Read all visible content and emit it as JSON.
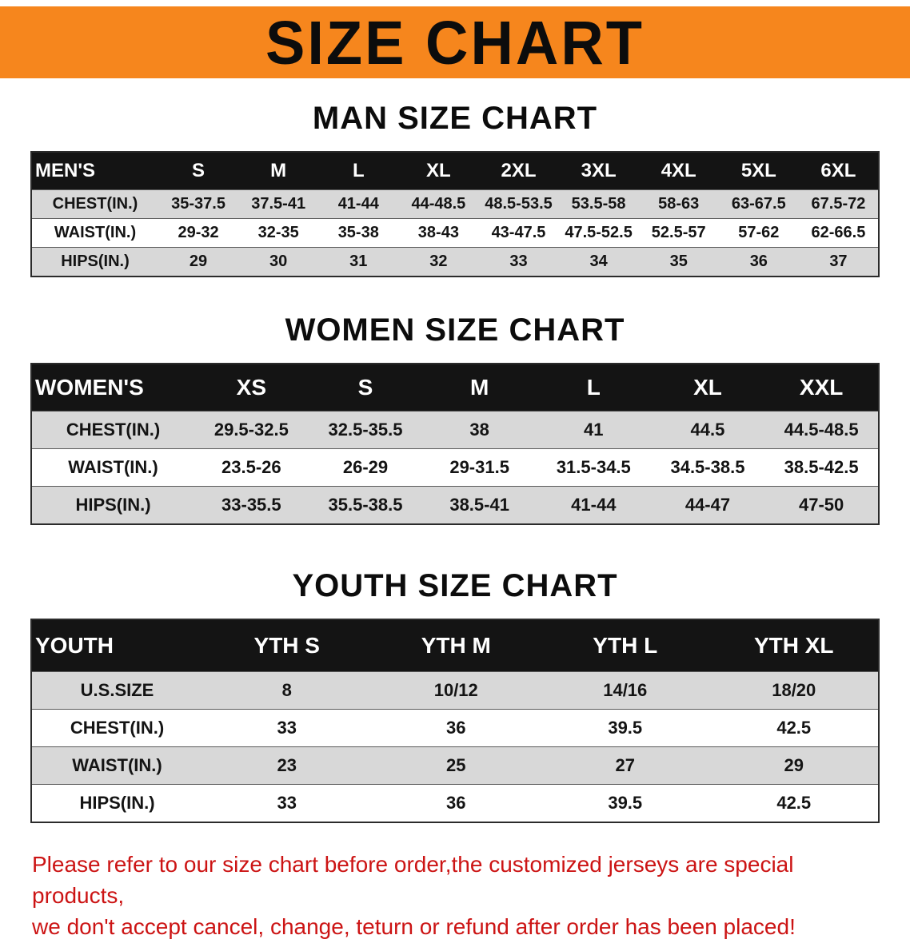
{
  "banner": {
    "title": "SIZE CHART"
  },
  "sections": [
    {
      "id": "men",
      "heading": "MAN SIZE CHART",
      "table": {
        "header": [
          "MEN'S",
          "S",
          "M",
          "L",
          "XL",
          "2XL",
          "3XL",
          "4XL",
          "5XL",
          "6XL"
        ],
        "rows": [
          [
            "CHEST(IN.)",
            "35-37.5",
            "37.5-41",
            "41-44",
            "44-48.5",
            "48.5-53.5",
            "53.5-58",
            "58-63",
            "63-67.5",
            "67.5-72"
          ],
          [
            "WAIST(IN.)",
            "29-32",
            "32-35",
            "35-38",
            "38-43",
            "43-47.5",
            "47.5-52.5",
            "52.5-57",
            "57-62",
            "62-66.5"
          ],
          [
            "HIPS(IN.)",
            "29",
            "30",
            "31",
            "32",
            "33",
            "34",
            "35",
            "36",
            "37"
          ]
        ]
      }
    },
    {
      "id": "women",
      "heading": "WOMEN SIZE CHART",
      "table": {
        "header": [
          "WOMEN'S",
          "XS",
          "S",
          "M",
          "L",
          "XL",
          "XXL"
        ],
        "rows": [
          [
            "CHEST(IN.)",
            "29.5-32.5",
            "32.5-35.5",
            "38",
            "41",
            "44.5",
            "44.5-48.5"
          ],
          [
            "WAIST(IN.)",
            "23.5-26",
            "26-29",
            "29-31.5",
            "31.5-34.5",
            "34.5-38.5",
            "38.5-42.5"
          ],
          [
            "HIPS(IN.)",
            "33-35.5",
            "35.5-38.5",
            "38.5-41",
            "41-44",
            "44-47",
            "47-50"
          ]
        ]
      }
    },
    {
      "id": "youth",
      "heading": "YOUTH SIZE CHART",
      "table": {
        "header": [
          "YOUTH",
          "YTH S",
          "YTH M",
          "YTH L",
          "YTH XL"
        ],
        "rows": [
          [
            "U.S.SIZE",
            "8",
            "10/12",
            "14/16",
            "18/20"
          ],
          [
            "CHEST(IN.)",
            "33",
            "36",
            "39.5",
            "42.5"
          ],
          [
            "WAIST(IN.)",
            "23",
            "25",
            "27",
            "29"
          ],
          [
            "HIPS(IN.)",
            "33",
            "36",
            "39.5",
            "42.5"
          ]
        ]
      }
    }
  ],
  "disclaimer": {
    "line1": "Please refer to our size chart before order,the customized jerseys are special products,",
    "line2": "we don't accept cancel, change, teturn or refund after order has been placed!"
  },
  "colors": {
    "banner_orange": "#f6861d",
    "header_black": "#141414",
    "row_gray": "#d8d8d8",
    "disclaimer_red": "#cc1414"
  }
}
